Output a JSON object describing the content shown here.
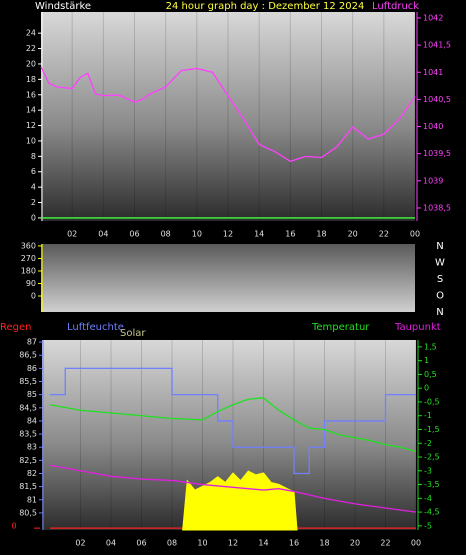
{
  "chart_data": [
    {
      "type": "line",
      "title": "24 hour graph day : Dezember 12 2024",
      "xlim": [
        0,
        24
      ],
      "xticks": [
        {
          "value": 2,
          "label": "02"
        },
        {
          "value": 4,
          "label": "04"
        },
        {
          "value": 6,
          "label": "06"
        },
        {
          "value": 8,
          "label": "08"
        },
        10,
        12,
        14,
        16,
        18,
        20,
        22,
        {
          "value": 24,
          "label": "00"
        }
      ],
      "ylim": [
        -0.4,
        26.75
      ],
      "yticks": [
        0,
        2,
        4,
        6,
        8,
        10,
        12,
        14,
        16,
        18,
        20,
        22,
        24
      ],
      "y2lim": [
        1038.26,
        1042.11
      ],
      "y2ticks": [
        {
          "value": 1038.5,
          "label": "1038,5"
        },
        1039,
        {
          "value": 1039.5,
          "label": "1039,5"
        },
        1040,
        {
          "value": 1040.5,
          "label": "1040,5"
        },
        1041,
        {
          "value": 1041.5,
          "label": "1041,5"
        },
        1042
      ],
      "series": [
        {
          "name": "Windstärke",
          "color": "#40ff40",
          "axis": "y",
          "x": [
            0,
            24
          ],
          "values": [
            0,
            0
          ]
        },
        {
          "name": "Luftdruck",
          "color": "#ff40ff",
          "axis": "y2",
          "x": [
            0,
            0.5,
            1,
            2,
            2.5,
            3,
            3.5,
            4,
            5,
            6,
            6.5,
            7,
            8,
            9,
            10,
            11,
            12,
            13,
            14,
            15,
            16,
            17,
            18,
            19,
            20,
            21,
            22,
            23,
            24
          ],
          "values": [
            1041.1,
            1040.8,
            1040.73,
            1040.7,
            1040.9,
            1040.98,
            1040.6,
            1040.57,
            1040.58,
            1040.45,
            1040.5,
            1040.6,
            1040.73,
            1041.03,
            1041.07,
            1041.0,
            1040.57,
            1040.14,
            1039.67,
            1039.54,
            1039.36,
            1039.45,
            1039.43,
            1039.63,
            1039.99,
            1039.77,
            1039.86,
            1040.14,
            1040.55
          ]
        }
      ]
    },
    {
      "type": "line",
      "ylim": [
        -115,
        374
      ],
      "yticks": [
        0,
        90,
        180,
        270,
        360
      ],
      "y2labels": [
        "N",
        "W",
        "S",
        "O",
        "N"
      ],
      "series": []
    },
    {
      "type": "line",
      "xlim": [
        0,
        24
      ],
      "xticks": [
        {
          "value": 2,
          "label": "02"
        },
        {
          "value": 4,
          "label": "04"
        },
        {
          "value": 6,
          "label": "06"
        },
        {
          "value": 8,
          "label": "08"
        },
        10,
        12,
        14,
        16,
        18,
        20,
        22,
        {
          "value": 24,
          "label": "00"
        }
      ],
      "ylim": [
        79.85,
        87.08
      ],
      "yticks": [
        {
          "value": 80.5,
          "label": "80,5"
        },
        81,
        {
          "value": 81.5,
          "label": "81,5"
        },
        82,
        {
          "value": 82.5,
          "label": "82,5"
        },
        83,
        {
          "value": 83.5,
          "label": "83,5"
        },
        84,
        {
          "value": 84.5,
          "label": "84,5"
        },
        85,
        {
          "value": 85.5,
          "label": "85,5"
        },
        86,
        {
          "value": 86.5,
          "label": "86,5"
        },
        87
      ],
      "y2lim": [
        -5.15,
        1.75
      ],
      "y2ticks": [
        -5,
        {
          "value": -4.5,
          "label": "-4,5"
        },
        -4,
        {
          "value": -3.5,
          "label": "-3,5"
        },
        -3,
        {
          "value": -2.5,
          "label": "-2,5"
        },
        -2,
        {
          "value": -1.5,
          "label": "-1,5"
        },
        -1,
        {
          "value": -0.5,
          "label": "-0,5"
        },
        0,
        {
          "value": 0.5,
          "label": "0,5"
        },
        1,
        {
          "value": 1.5,
          "label": "1,5"
        }
      ],
      "y3lim": [
        0,
        1000
      ],
      "y4lim": [
        -0.1,
        10
      ],
      "y4ticks": [
        0
      ],
      "series": [
        {
          "name": "Regen",
          "color": "#ff2020",
          "axis": "y4",
          "x": [
            0,
            24
          ],
          "values": [
            0,
            0
          ]
        },
        {
          "name": "Luftfeuchte",
          "color": "#7080ff",
          "axis": "y",
          "step": true,
          "x": [
            0,
            1,
            2,
            3,
            4,
            5,
            6,
            7,
            8,
            9,
            10,
            11,
            12,
            13,
            14,
            15,
            16,
            17,
            18,
            19,
            20,
            21,
            22,
            23,
            24
          ],
          "values": [
            85,
            86,
            86,
            86,
            86,
            86,
            86,
            86,
            85,
            85,
            85,
            84,
            83,
            83,
            83,
            83,
            82,
            83,
            84,
            84,
            84,
            84,
            85,
            85,
            85
          ]
        },
        {
          "name": "Solar",
          "color": "#ffff00",
          "axis": "y3",
          "area": true,
          "x": [
            8.7,
            9,
            9.5,
            10,
            10.5,
            11,
            11.5,
            12,
            12.5,
            13,
            13.5,
            14,
            14.5,
            15,
            15.5,
            16,
            16.2
          ],
          "values": [
            0,
            260,
            210,
            230,
            250,
            280,
            250,
            300,
            260,
            310,
            290,
            300,
            250,
            240,
            220,
            200,
            0
          ]
        },
        {
          "name": "Temperatur",
          "color": "#20e020",
          "axis": "y2",
          "x": [
            0,
            2,
            4,
            6,
            8,
            10,
            11,
            12,
            13,
            14,
            15,
            16,
            17,
            18,
            19,
            20,
            21,
            22,
            23,
            24
          ],
          "values": [
            -0.6,
            -0.8,
            -0.9,
            -1.0,
            -1.1,
            -1.15,
            -0.85,
            -0.6,
            -0.4,
            -0.35,
            -0.8,
            -1.15,
            -1.45,
            -1.5,
            -1.7,
            -1.8,
            -1.9,
            -2.05,
            -2.15,
            -2.3
          ]
        },
        {
          "name": "Taupunkt",
          "color": "#e020e0",
          "axis": "y2",
          "x": [
            0,
            2,
            4,
            6,
            8,
            10,
            12,
            14,
            15,
            16,
            18,
            20,
            22,
            24
          ],
          "values": [
            -2.8,
            -3.0,
            -3.2,
            -3.3,
            -3.35,
            -3.5,
            -3.6,
            -3.7,
            -3.65,
            -3.75,
            -4.0,
            -4.2,
            -4.35,
            -4.5
          ]
        }
      ]
    }
  ]
}
